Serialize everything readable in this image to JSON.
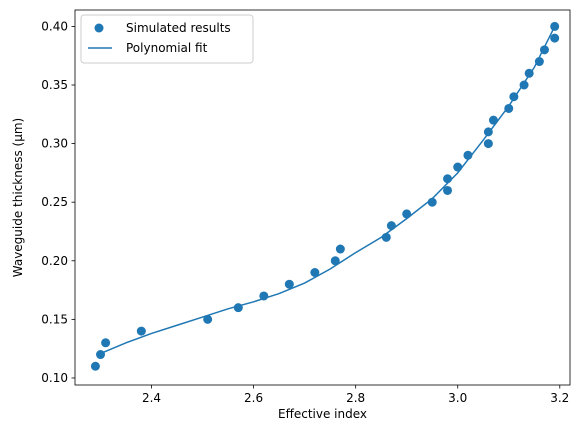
{
  "chart_data": {
    "type": "scatter",
    "title": "",
    "xlabel": "Effective index",
    "ylabel": "Waveguide thickness (μm)",
    "xlim": [
      2.25,
      3.22
    ],
    "ylim": [
      0.094,
      0.414
    ],
    "xticks": [
      "2.4",
      "2.6",
      "2.8",
      "3.0",
      "3.2"
    ],
    "yticks": [
      "0.10",
      "0.15",
      "0.20",
      "0.25",
      "0.30",
      "0.35",
      "0.40"
    ],
    "grid": false,
    "legend_position": "top-left",
    "colors": {
      "series": "#1f77b4"
    },
    "series": [
      {
        "name": "Simulated results",
        "kind": "scatter",
        "x": [
          2.29,
          2.3,
          2.31,
          2.38,
          2.51,
          2.57,
          2.62,
          2.67,
          2.72,
          2.76,
          2.77,
          2.86,
          2.87,
          2.9,
          2.95,
          2.98,
          2.98,
          3.0,
          3.02,
          3.06,
          3.06,
          3.07,
          3.1,
          3.11,
          3.13,
          3.14,
          3.16,
          3.17,
          3.19,
          3.19
        ],
        "y": [
          0.11,
          0.12,
          0.13,
          0.14,
          0.15,
          0.16,
          0.17,
          0.18,
          0.19,
          0.2,
          0.21,
          0.22,
          0.23,
          0.24,
          0.25,
          0.26,
          0.27,
          0.28,
          0.29,
          0.3,
          0.31,
          0.32,
          0.33,
          0.34,
          0.35,
          0.36,
          0.37,
          0.38,
          0.39,
          0.4
        ]
      },
      {
        "name": "Polynomial fit",
        "kind": "line",
        "x": [
          2.295,
          2.35,
          2.4,
          2.45,
          2.5,
          2.55,
          2.6,
          2.65,
          2.7,
          2.75,
          2.8,
          2.85,
          2.9,
          2.95,
          3.0,
          3.05,
          3.1,
          3.15,
          3.19
        ],
        "y": [
          0.12,
          0.13,
          0.138,
          0.145,
          0.152,
          0.159,
          0.165,
          0.172,
          0.181,
          0.193,
          0.207,
          0.22,
          0.236,
          0.253,
          0.275,
          0.303,
          0.332,
          0.365,
          0.4
        ]
      }
    ]
  }
}
